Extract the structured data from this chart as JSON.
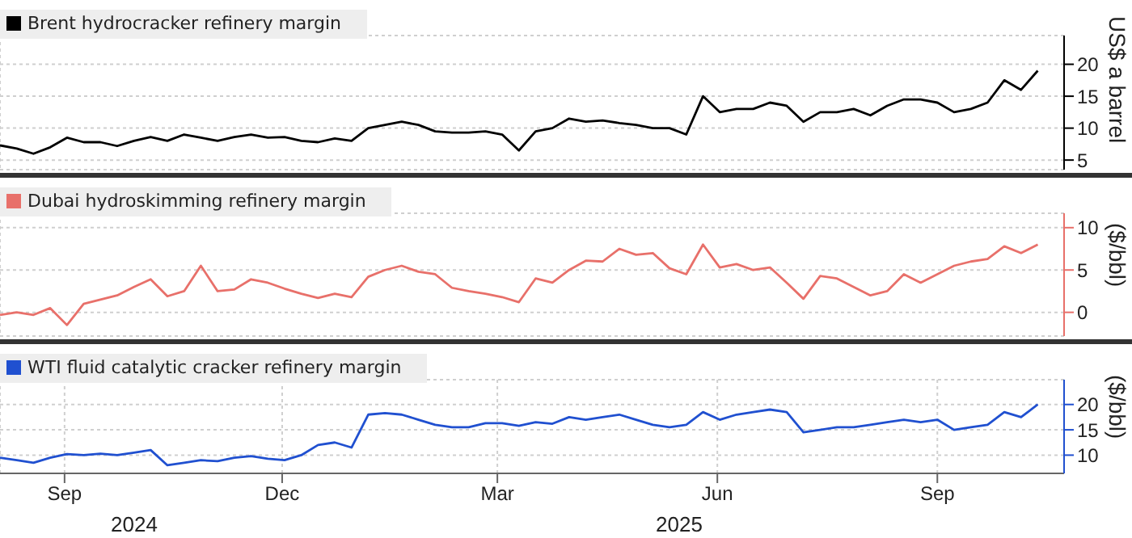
{
  "chart_data": [
    {
      "type": "line",
      "legend": "top left",
      "grid": true,
      "tick_labels": "y",
      "marker": "none",
      "line_style": "solid",
      "ylabel": "US$ a barrel",
      "x": [
        "2024-08-05",
        "2024-08-12",
        "2024-08-19",
        "2024-08-26",
        "2024-09-02",
        "2024-09-09",
        "2024-09-16",
        "2024-09-23",
        "2024-09-30",
        "2024-10-07",
        "2024-10-14",
        "2024-10-21",
        "2024-10-28",
        "2024-11-04",
        "2024-11-11",
        "2024-11-18",
        "2024-11-25",
        "2024-12-02",
        "2024-12-09",
        "2024-12-16",
        "2024-12-23",
        "2024-12-30",
        "2025-01-06",
        "2025-01-13",
        "2025-01-20",
        "2025-01-27",
        "2025-02-03",
        "2025-02-10",
        "2025-02-17",
        "2025-02-24",
        "2025-03-03",
        "2025-03-10",
        "2025-03-17",
        "2025-03-24",
        "2025-03-31",
        "2025-04-07",
        "2025-04-14",
        "2025-04-21",
        "2025-04-28",
        "2025-05-05",
        "2025-05-12",
        "2025-05-19",
        "2025-05-26",
        "2025-06-02",
        "2025-06-09",
        "2025-06-16",
        "2025-06-23",
        "2025-06-30",
        "2025-07-07",
        "2025-07-14",
        "2025-07-21",
        "2025-07-28",
        "2025-08-04",
        "2025-08-11",
        "2025-08-18",
        "2025-08-25",
        "2025-09-01",
        "2025-09-08",
        "2025-09-15",
        "2025-09-22",
        "2025-09-29",
        "2025-10-06",
        "2025-10-13"
      ],
      "xlim": [
        "2024-08-05",
        "2025-10-24"
      ],
      "xticks": [
        {
          "value": "2024-09-01",
          "label": null
        },
        {
          "value": "2024-12-01",
          "label": null
        },
        {
          "value": "2025-03-01",
          "label": null
        },
        {
          "value": "2025-06-01",
          "label": null
        },
        {
          "value": "2025-09-01",
          "label": null
        }
      ],
      "ylim": [
        3.5,
        24.5
      ],
      "yticks": [
        5,
        10,
        15,
        20
      ],
      "series": [
        {
          "name": "Brent hydrocracker refinery margin",
          "color": "#000000",
          "values": [
            7.3,
            6.8,
            6.0,
            7.0,
            8.5,
            7.8,
            7.8,
            7.2,
            8.0,
            8.6,
            8.0,
            9.0,
            8.5,
            8.0,
            8.6,
            9.0,
            8.5,
            8.6,
            8.0,
            7.8,
            8.4,
            8.0,
            10.0,
            10.5,
            11.0,
            10.5,
            9.5,
            9.3,
            9.3,
            9.5,
            9.0,
            6.5,
            9.5,
            10.0,
            11.5,
            11.0,
            11.2,
            10.8,
            10.5,
            10.0,
            10.0,
            9.0,
            15.0,
            12.5,
            13.0,
            13.0,
            14.0,
            13.5,
            11.0,
            12.5,
            12.5,
            13.0,
            12.0,
            13.5,
            14.5,
            14.5,
            14.0,
            12.5,
            13.0,
            14.0,
            17.5,
            16.0,
            19.0
          ]
        }
      ]
    },
    {
      "type": "line",
      "legend": "top left",
      "grid": true,
      "tick_labels": "y",
      "marker": "none",
      "line_style": "solid",
      "ylabel": "($/bbl)",
      "x": [
        "2024-08-05",
        "2024-08-12",
        "2024-08-19",
        "2024-08-26",
        "2024-09-02",
        "2024-09-09",
        "2024-09-16",
        "2024-09-23",
        "2024-09-30",
        "2024-10-07",
        "2024-10-14",
        "2024-10-21",
        "2024-10-28",
        "2024-11-04",
        "2024-11-11",
        "2024-11-18",
        "2024-11-25",
        "2024-12-02",
        "2024-12-09",
        "2024-12-16",
        "2024-12-23",
        "2024-12-30",
        "2025-01-06",
        "2025-01-13",
        "2025-01-20",
        "2025-01-27",
        "2025-02-03",
        "2025-02-10",
        "2025-02-17",
        "2025-02-24",
        "2025-03-03",
        "2025-03-10",
        "2025-03-17",
        "2025-03-24",
        "2025-03-31",
        "2025-04-07",
        "2025-04-14",
        "2025-04-21",
        "2025-04-28",
        "2025-05-05",
        "2025-05-12",
        "2025-05-19",
        "2025-05-26",
        "2025-06-02",
        "2025-06-09",
        "2025-06-16",
        "2025-06-23",
        "2025-06-30",
        "2025-07-07",
        "2025-07-14",
        "2025-07-21",
        "2025-07-28",
        "2025-08-04",
        "2025-08-11",
        "2025-08-18",
        "2025-08-25",
        "2025-09-01",
        "2025-09-08",
        "2025-09-15",
        "2025-09-22",
        "2025-09-29",
        "2025-10-06",
        "2025-10-13"
      ],
      "xlim": [
        "2024-08-05",
        "2025-10-24"
      ],
      "xticks": [
        {
          "value": "2024-09-01",
          "label": null
        },
        {
          "value": "2024-12-01",
          "label": null
        },
        {
          "value": "2025-03-01",
          "label": null
        },
        {
          "value": "2025-06-01",
          "label": null
        },
        {
          "value": "2025-09-01",
          "label": null
        }
      ],
      "ylim": [
        -2.8,
        11.7
      ],
      "yticks": [
        0,
        5,
        10
      ],
      "series": [
        {
          "name": "Dubai hydroskimming refinery margin",
          "color": "#e8706a",
          "values": [
            -0.3,
            0,
            -0.3,
            0.5,
            -1.5,
            1.0,
            1.5,
            2.0,
            3.0,
            3.9,
            1.9,
            2.5,
            5.5,
            2.5,
            2.7,
            3.9,
            3.5,
            2.8,
            2.2,
            1.7,
            2.2,
            1.8,
            4.2,
            5.0,
            5.5,
            4.8,
            4.5,
            2.9,
            2.5,
            2.2,
            1.8,
            1.2,
            4.0,
            3.5,
            5.0,
            6.1,
            6.0,
            7.5,
            6.8,
            7.0,
            5.2,
            4.5,
            8.0,
            5.3,
            5.7,
            5.0,
            5.3,
            3.5,
            1.6,
            4.3,
            4.0,
            3.0,
            2.0,
            2.5,
            4.5,
            3.5,
            4.5,
            5.5,
            6.0,
            6.3,
            7.8,
            7.0,
            8.0
          ]
        }
      ]
    },
    {
      "type": "line",
      "legend": "top left",
      "grid": true,
      "marker": "none",
      "line_style": "solid",
      "ylabel": "($/bbl)",
      "annotations": [
        "2024",
        "2025"
      ],
      "x": [
        "2024-08-05",
        "2024-08-12",
        "2024-08-19",
        "2024-08-26",
        "2024-09-02",
        "2024-09-09",
        "2024-09-16",
        "2024-09-23",
        "2024-09-30",
        "2024-10-07",
        "2024-10-14",
        "2024-10-21",
        "2024-10-28",
        "2024-11-04",
        "2024-11-11",
        "2024-11-18",
        "2024-11-25",
        "2024-12-02",
        "2024-12-09",
        "2024-12-16",
        "2024-12-23",
        "2024-12-30",
        "2025-01-06",
        "2025-01-13",
        "2025-01-20",
        "2025-01-27",
        "2025-02-03",
        "2025-02-10",
        "2025-02-17",
        "2025-02-24",
        "2025-03-03",
        "2025-03-10",
        "2025-03-17",
        "2025-03-24",
        "2025-03-31",
        "2025-04-07",
        "2025-04-14",
        "2025-04-21",
        "2025-04-28",
        "2025-05-05",
        "2025-05-12",
        "2025-05-19",
        "2025-05-26",
        "2025-06-02",
        "2025-06-09",
        "2025-06-16",
        "2025-06-23",
        "2025-06-30",
        "2025-07-07",
        "2025-07-14",
        "2025-07-21",
        "2025-07-28",
        "2025-08-04",
        "2025-08-11",
        "2025-08-18",
        "2025-08-25",
        "2025-09-01",
        "2025-09-08",
        "2025-09-15",
        "2025-09-22",
        "2025-09-29",
        "2025-10-06",
        "2025-10-13"
      ],
      "xlim": [
        "2024-08-05",
        "2025-10-24"
      ],
      "xticks": [
        {
          "value": "2024-09-01",
          "label": "Sep"
        },
        {
          "value": "2024-12-01",
          "label": "Dec"
        },
        {
          "value": "2025-03-01",
          "label": "Mar"
        },
        {
          "value": "2025-06-01",
          "label": "Jun"
        },
        {
          "value": "2025-09-01",
          "label": "Sep"
        }
      ],
      "ylim": [
        6.4,
        24.9
      ],
      "yticks": [
        10,
        15,
        20
      ],
      "series": [
        {
          "name": "WTI fluid catalytic cracker refinery margin",
          "color": "#2050d0",
          "values": [
            9.5,
            9.0,
            8.5,
            9.5,
            10.2,
            10.0,
            10.3,
            10.0,
            10.5,
            11.0,
            8.0,
            8.5,
            9.0,
            8.8,
            9.5,
            9.8,
            9.3,
            9.0,
            10.0,
            12.0,
            12.5,
            11.5,
            18.0,
            18.3,
            18.0,
            17.0,
            16.0,
            15.5,
            15.5,
            16.3,
            16.3,
            15.8,
            16.5,
            16.2,
            17.5,
            17.0,
            17.5,
            18.0,
            17.0,
            16.0,
            15.5,
            16.0,
            18.5,
            17.0,
            18.0,
            18.5,
            19.0,
            18.5,
            14.5,
            15.0,
            15.5,
            15.5,
            16.0,
            16.5,
            17.0,
            16.5,
            17.0,
            15.0,
            15.5,
            16.0,
            18.5,
            17.5,
            20.0
          ]
        }
      ]
    }
  ]
}
